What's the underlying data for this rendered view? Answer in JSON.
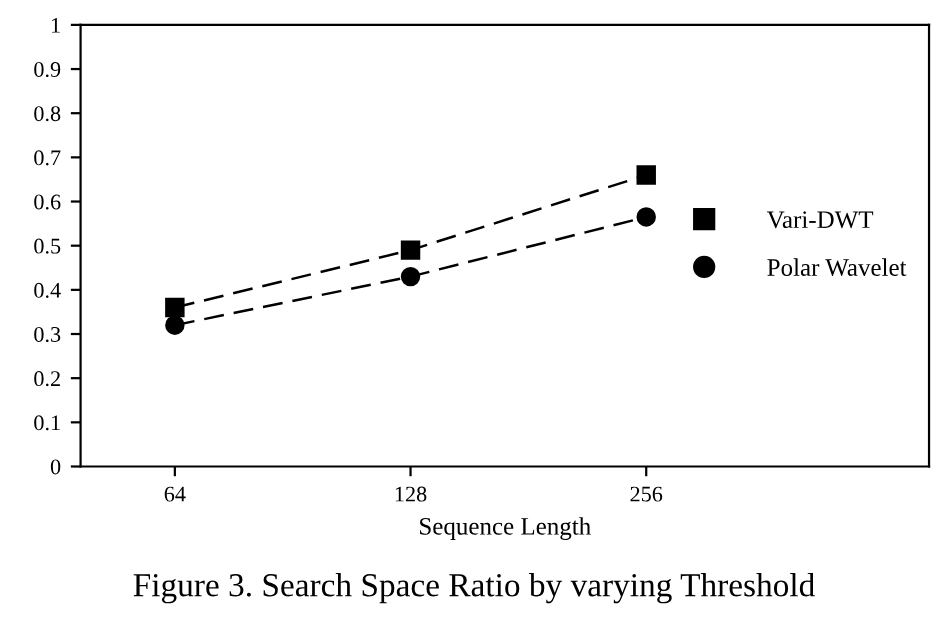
{
  "chart_data": {
    "type": "line",
    "xlabel": "Sequence Length",
    "categories": [
      "64",
      "128",
      "256"
    ],
    "series": [
      {
        "name": "Vari-DWT",
        "color": "#000000",
        "marker": "square",
        "values": [
          0.36,
          0.49,
          0.66
        ]
      },
      {
        "name": "Polar Wavelet",
        "color": "#000000",
        "marker": "circle",
        "values": [
          0.32,
          0.43,
          0.565
        ]
      }
    ],
    "ylim": [
      0,
      1
    ],
    "yticks": [
      0,
      0.1,
      0.2,
      0.3,
      0.4,
      0.5,
      0.6,
      0.7,
      0.8,
      0.9,
      1
    ],
    "line_style": "dashed",
    "grid": false,
    "legend": "right",
    "annotations": [
      "Figure 3. Search Space Ratio by varying Threshold"
    ]
  }
}
